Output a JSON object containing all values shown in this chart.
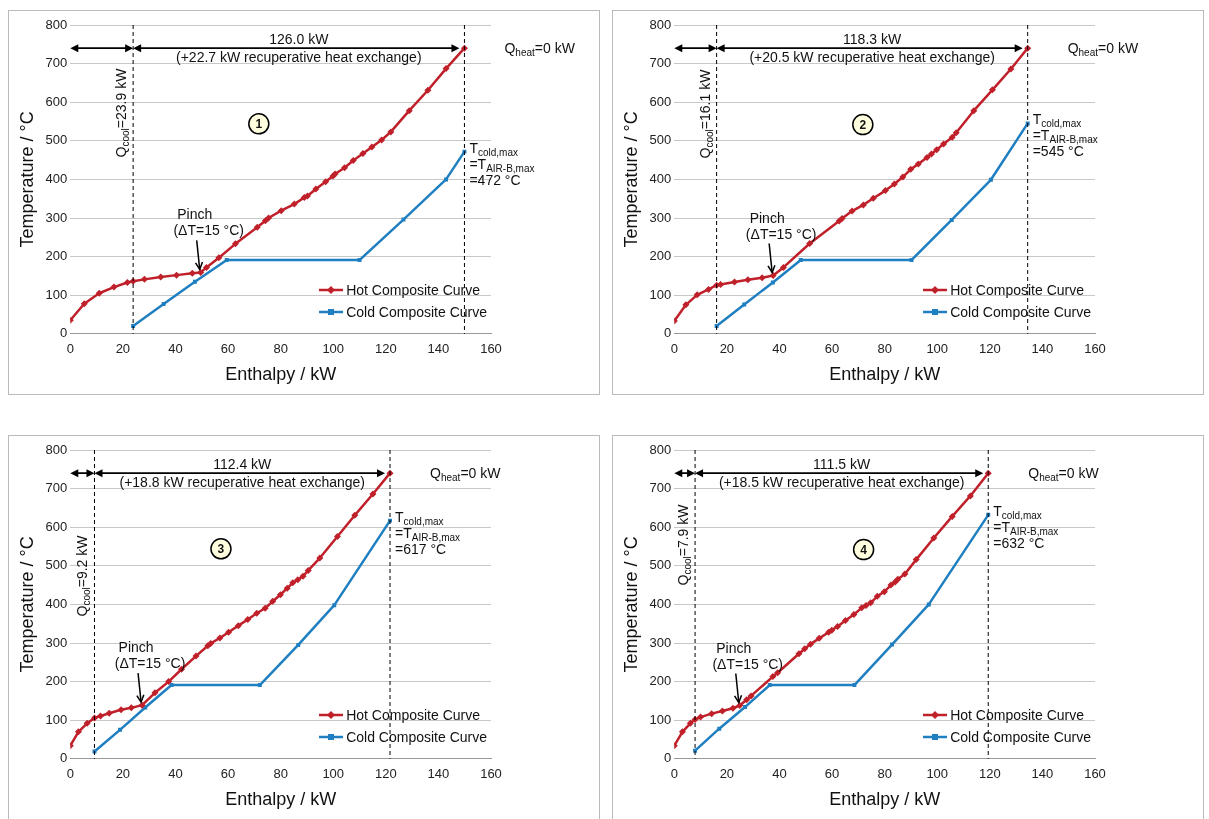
{
  "chart_data": [
    {
      "type": "line",
      "xlabel": "Enthalpy / kW",
      "ylabel": "Temperature / °C",
      "xlim": [
        0,
        160
      ],
      "xticks": [
        0,
        20,
        40,
        60,
        80,
        100,
        120,
        140,
        160
      ],
      "ylim": [
        0,
        800
      ],
      "yticks": [
        0,
        100,
        200,
        300,
        400,
        500,
        600,
        700,
        800
      ],
      "grid": "y",
      "legend": "bottom right",
      "series": [
        {
          "name": "Hot Composite Curve",
          "color": "#c0202a",
          "marker": "diamond",
          "x": [
            0,
            5.3,
            11,
            16.6,
            21.7,
            23.9,
            28.2,
            34.4,
            40.4,
            46.4,
            49.6,
            51.8,
            56.5,
            62.8,
            71.1,
            74.2,
            75.4,
            80.2,
            85.2,
            89,
            90.2,
            93.4,
            97.1,
            99.9,
            100.7,
            104.3,
            107.6,
            111.3,
            114.7,
            118.4,
            121.9,
            128.9,
            136,
            142.9,
            149.9
          ],
          "values": [
            35,
            78,
            105,
            121,
            133,
            136,
            141,
            147,
            152,
            157,
            159,
            172,
            197,
            233,
            276,
            293,
            300,
            319,
            336,
            353,
            357,
            375,
            394,
            409,
            414,
            430,
            449,
            467,
            484,
            502,
            523,
            578,
            631,
            687,
            740
          ]
        },
        {
          "name": "Cold Composite Curve",
          "color": "#1f7fc0",
          "marker": "square",
          "x": [
            23.9,
            35.5,
            47.4,
            59.5,
            110,
            126.7,
            142.9,
            149.9
          ],
          "values": [
            20,
            77,
            135,
            191,
            191,
            296,
            400,
            472
          ]
        }
      ],
      "ref_lines": [
        {
          "axis": "x",
          "value": 23.9,
          "color": "#000000",
          "line_style": "dashed"
        },
        {
          "axis": "x",
          "value": 149.9,
          "color": "#000000",
          "line_style": "dashed"
        }
      ],
      "annotations": [
        "126.0 kW",
        "(+22.7 kW recuperative heat exchange)",
        {
          "text": "Q$_{heat}$=0 kW",
          "x": 149.9,
          "y": 740
        },
        {
          "text": "Q$_{cool}$=23.9 kW",
          "x": 23.9,
          "y": 573
        },
        {
          "text": "Pinch",
          "x": 49.6,
          "y": 159
        },
        {
          "text": "(ΔT=15 °C)",
          "x": 49.6,
          "y": 159
        },
        {
          "text": "T$_{cold,max}$",
          "x": 149.9,
          "y": 472
        },
        {
          "text": "=T$_{AIR-B,max}$",
          "x": 149.9,
          "y": 472
        },
        {
          "text": "=472 °C",
          "x": 149.9,
          "y": 472
        },
        {
          "text": "1",
          "x": 71.7,
          "y": 544
        }
      ]
    },
    {
      "type": "line",
      "xlabel": "Enthalpy / kW",
      "ylabel": "Temperature / °C",
      "xlim": [
        0,
        160
      ],
      "xticks": [
        0,
        20,
        40,
        60,
        80,
        100,
        120,
        140,
        160
      ],
      "ylim": [
        0,
        800
      ],
      "yticks": [
        0,
        100,
        200,
        300,
        400,
        500,
        600,
        700,
        800
      ],
      "grid": "y",
      "legend": "bottom right",
      "series": [
        {
          "name": "Hot Composite Curve",
          "color": "#c0202a",
          "marker": "diamond",
          "x": [
            0,
            4.4,
            8.7,
            13,
            16.1,
            17.6,
            22.9,
            28,
            33.4,
            37.6,
            41.5,
            51.5,
            62.7,
            63.8,
            67.6,
            71.9,
            75.7,
            80.3,
            83.7,
            86.9,
            89.9,
            92.8,
            96.1,
            97.8,
            99.8,
            102.4,
            105.7,
            107.2,
            113.9,
            121,
            128,
            134.4
          ],
          "values": [
            33,
            75,
            101,
            115,
            126,
            128,
            134,
            140,
            145,
            151,
            172,
            234,
            292,
            299,
            318,
            334,
            351,
            371,
            388,
            406,
            426,
            440,
            457,
            466,
            477,
            492,
            509,
            521,
            578,
            632,
            686,
            740
          ]
        },
        {
          "name": "Cold Composite Curve",
          "color": "#1f7fc0",
          "marker": "square",
          "x": [
            16.1,
            26.6,
            37.5,
            48.1,
            90.2,
            105.5,
            120.4,
            134.4
          ],
          "values": [
            20,
            76,
            133,
            191,
            191,
            295,
            399,
            545
          ]
        }
      ],
      "ref_lines": [
        {
          "axis": "x",
          "value": 16.1,
          "color": "#000000",
          "line_style": "dashed"
        },
        {
          "axis": "x",
          "value": 134.4,
          "color": "#000000",
          "line_style": "dashed"
        }
      ],
      "annotations": [
        "118.3 kW",
        "(+20.5 kW recuperative heat exchange)",
        {
          "text": "Q$_{heat}$=0 kW",
          "x": 134.4,
          "y": 740
        },
        {
          "text": "Q$_{cool}$=16.1 kW",
          "x": 16.1,
          "y": 570
        },
        {
          "text": "Pinch",
          "x": 37.6,
          "y": 151
        },
        {
          "text": "(ΔT=15 °C)",
          "x": 37.6,
          "y": 151
        },
        {
          "text": "T$_{cold,max}$",
          "x": 134.4,
          "y": 545
        },
        {
          "text": "=T$_{AIR-B,max}$",
          "x": 134.4,
          "y": 545
        },
        {
          "text": "=545 °C",
          "x": 134.4,
          "y": 545
        },
        {
          "text": "2",
          "x": 71.7,
          "y": 542
        }
      ]
    },
    {
      "type": "line",
      "xlabel": "Enthalpy / kW",
      "ylabel": "Temperature / °C",
      "xlim": [
        0,
        160
      ],
      "xticks": [
        0,
        20,
        40,
        60,
        80,
        100,
        120,
        140,
        160
      ],
      "ylim": [
        0,
        800
      ],
      "yticks": [
        0,
        100,
        200,
        300,
        400,
        500,
        600,
        700,
        800
      ],
      "grid": "y",
      "legend": "bottom right",
      "series": [
        {
          "name": "Hot Composite Curve",
          "color": "#c0202a",
          "marker": "diamond",
          "x": [
            0,
            3.1,
            6.4,
            9.2,
            11.5,
            14.8,
            19.3,
            23.2,
            27.3,
            32.2,
            37.4,
            42.3,
            47.8,
            52.3,
            53.4,
            56.9,
            60.2,
            63.9,
            67.5,
            70.9,
            74.1,
            77,
            79.9,
            82.5,
            84.6,
            86.5,
            88.5,
            90.5,
            94.9,
            101.6,
            108.2,
            115.1,
            121.6
          ],
          "values": [
            34,
            70,
            92,
            106,
            111,
            118,
            127,
            132,
            139,
            171,
            200,
            232,
            266,
            293,
            299,
            313,
            328,
            345,
            361,
            377,
            390,
            408,
            425,
            442,
            456,
            464,
            473,
            488,
            520,
            576,
            631,
            686,
            740
          ]
        },
        {
          "name": "Cold Composite Curve",
          "color": "#1f7fc0",
          "marker": "square",
          "x": [
            9.2,
            18.9,
            28.5,
            38.5,
            72.1,
            86.7,
            100.4,
            121.6
          ],
          "values": [
            19,
            75,
            133,
            191,
            191,
            295,
            398,
            617
          ]
        }
      ],
      "ref_lines": [
        {
          "axis": "x",
          "value": 9.2,
          "color": "#000000",
          "line_style": "dashed"
        },
        {
          "axis": "x",
          "value": 121.6,
          "color": "#000000",
          "line_style": "dashed"
        }
      ],
      "annotations": [
        "112.4 kW",
        "(+18.8 kW recuperative heat exchange)",
        {
          "text": "Q$_{heat}$=0 kW",
          "x": 121.6,
          "y": 740
        },
        {
          "text": "Q$_{cool}$=9.2 kW",
          "x": 9.2,
          "y": 473
        },
        {
          "text": "Pinch",
          "x": 27.3,
          "y": 139
        },
        {
          "text": "(ΔT=15 °C)",
          "x": 27.3,
          "y": 139
        },
        {
          "text": "T$_{cold,max}$",
          "x": 121.6,
          "y": 617
        },
        {
          "text": "=T$_{AIR-B,max}$",
          "x": 121.6,
          "y": 617
        },
        {
          "text": "=617 °C",
          "x": 121.6,
          "y": 617
        },
        {
          "text": "3",
          "x": 57.3,
          "y": 544
        }
      ]
    },
    {
      "type": "line",
      "xlabel": "Enthalpy / kW",
      "ylabel": "Temperature / °C",
      "xlim": [
        0,
        160
      ],
      "xticks": [
        0,
        20,
        40,
        60,
        80,
        100,
        120,
        140,
        160
      ],
      "ylim": [
        0,
        800
      ],
      "yticks": [
        0,
        100,
        200,
        300,
        400,
        500,
        600,
        700,
        800
      ],
      "grid": "y",
      "legend": "bottom right",
      "series": [
        {
          "name": "Hot Composite Curve",
          "color": "#c0202a",
          "marker": "diamond",
          "x": [
            0,
            3.1,
            6.1,
            7.9,
            10,
            14.2,
            18.3,
            22.3,
            24.9,
            27.5,
            29.2,
            37.5,
            39.3,
            47.4,
            49.6,
            51.8,
            55.1,
            58.7,
            59.9,
            62.1,
            65.1,
            68.3,
            71.3,
            72.9,
            74.7,
            77.2,
            79.9,
            82.4,
            84,
            85,
            87.7,
            92,
            98.7,
            105.7,
            112.6,
            119.4
          ],
          "values": [
            34,
            70,
            92,
            102,
            108,
            117,
            124,
            131,
            138,
            153,
            163,
            213,
            223,
            272,
            285,
            297,
            312,
            328,
            333,
            343,
            358,
            374,
            391,
            397,
            404,
            421,
            433,
            450,
            458,
            465,
            479,
            516,
            572,
            628,
            681,
            740
          ]
        },
        {
          "name": "Cold Composite Curve",
          "color": "#1f7fc0",
          "marker": "square",
          "x": [
            7.9,
            17.1,
            26.9,
            36.3,
            68.5,
            82.8,
            96.8,
            119.4
          ],
          "values": [
            21,
            78,
            134,
            191,
            191,
            296,
            400,
            632
          ]
        }
      ],
      "ref_lines": [
        {
          "axis": "x",
          "value": 7.9,
          "color": "#000000",
          "line_style": "dashed"
        },
        {
          "axis": "x",
          "value": 119.4,
          "color": "#000000",
          "line_style": "dashed"
        }
      ],
      "annotations": [
        "111.5 kW",
        "(+18.5 kW recuperative heat exchange)",
        {
          "text": "Q$_{heat}$=0 kW",
          "x": 119.4,
          "y": 740
        },
        {
          "text": "Q$_{cool}$=7.9 kW",
          "x": 7.9,
          "y": 555
        },
        {
          "text": "Pinch",
          "x": 24.9,
          "y": 138
        },
        {
          "text": "(ΔT=15 °C)",
          "x": 24.9,
          "y": 138
        },
        {
          "text": "T$_{cold,max}$",
          "x": 119.4,
          "y": 632
        },
        {
          "text": "=T$_{AIR-B,max}$",
          "x": 119.4,
          "y": 632
        },
        {
          "text": "=632 °C",
          "x": 119.4,
          "y": 632
        },
        {
          "text": "4",
          "x": 72,
          "y": 542
        }
      ]
    }
  ]
}
